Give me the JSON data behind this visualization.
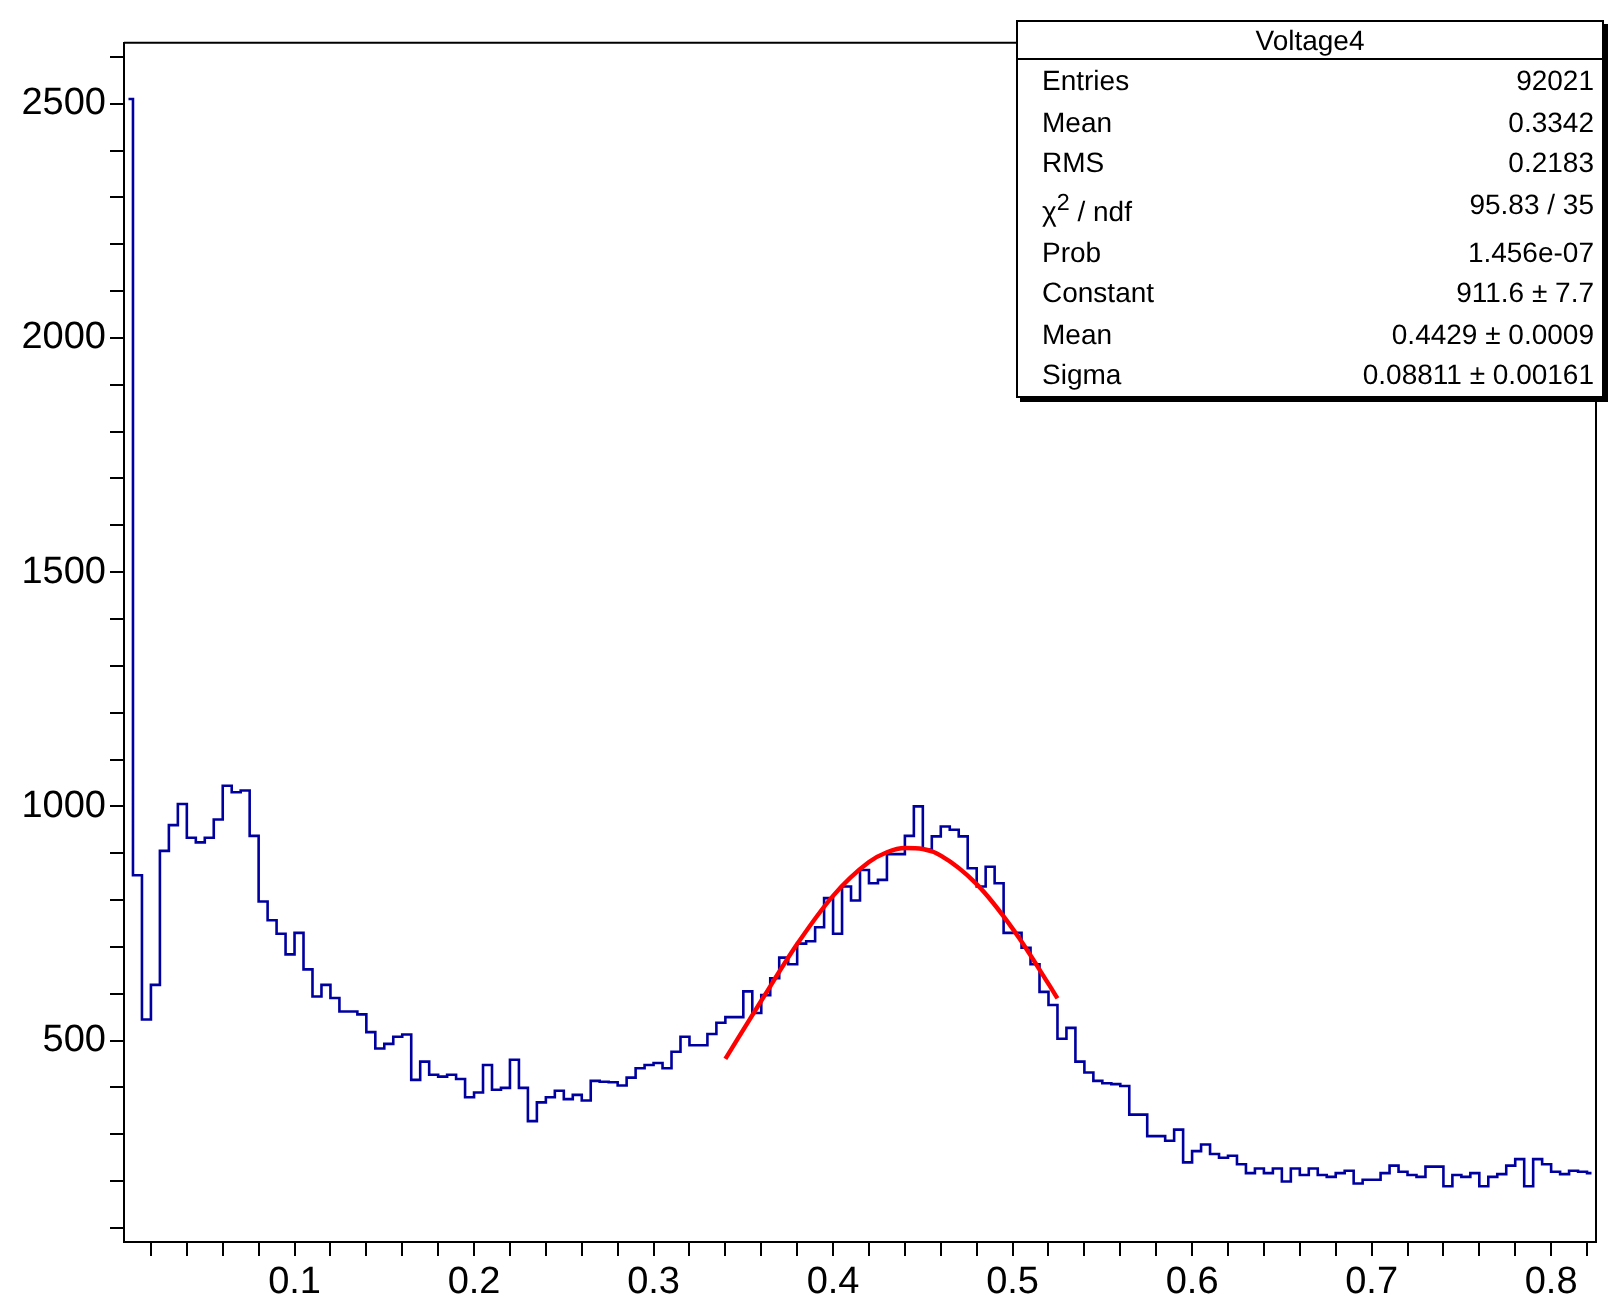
{
  "chart_data": {
    "type": "histogram",
    "bins": [
      0.005,
      0.01,
      0.015,
      0.02,
      0.025,
      0.03,
      0.035,
      0.04,
      0.045,
      0.05,
      0.055,
      0.06,
      0.065,
      0.07,
      0.075,
      0.08,
      0.085,
      0.09,
      0.095,
      0.1,
      0.105,
      0.11,
      0.115,
      0.12,
      0.125,
      0.13,
      0.135,
      0.14,
      0.145,
      0.15,
      0.155,
      0.16,
      0.165,
      0.17,
      0.175,
      0.18,
      0.185,
      0.19,
      0.195,
      0.2,
      0.205,
      0.21,
      0.215,
      0.22,
      0.225,
      0.23,
      0.235,
      0.24,
      0.245,
      0.25,
      0.255,
      0.26,
      0.265,
      0.27,
      0.275,
      0.28,
      0.285,
      0.29,
      0.295,
      0.3,
      0.305,
      0.31,
      0.315,
      0.32,
      0.325,
      0.33,
      0.335,
      0.34,
      0.345,
      0.35,
      0.355,
      0.36,
      0.365,
      0.37,
      0.375,
      0.38,
      0.385,
      0.39,
      0.395,
      0.4,
      0.405,
      0.41,
      0.415,
      0.42,
      0.425,
      0.43,
      0.435,
      0.44,
      0.445,
      0.45,
      0.455,
      0.46,
      0.465,
      0.47,
      0.475,
      0.48,
      0.485,
      0.49,
      0.495,
      0.5,
      0.505,
      0.51,
      0.515,
      0.52,
      0.525,
      0.53,
      0.535,
      0.54,
      0.545,
      0.55,
      0.555,
      0.56,
      0.565,
      0.57,
      0.575,
      0.58,
      0.585,
      0.59,
      0.595,
      0.6,
      0.605,
      0.61,
      0.615,
      0.62,
      0.625,
      0.63,
      0.635,
      0.64,
      0.645,
      0.65,
      0.655,
      0.66,
      0.665,
      0.67,
      0.675,
      0.68,
      0.685,
      0.69,
      0.695,
      0.7,
      0.705,
      0.71,
      0.715,
      0.72,
      0.725,
      0.73,
      0.735,
      0.74,
      0.745,
      0.75,
      0.755,
      0.76,
      0.765,
      0.77,
      0.775,
      0.78,
      0.785,
      0.79,
      0.795,
      0.8,
      0.805,
      0.81,
      0.815,
      0.82,
      0.825
    ],
    "series": [
      {
        "color": "#0000a0",
        "values": [
          2510,
          853,
          545,
          619,
          905,
          960,
          1005,
          933,
          923,
          933,
          972,
          1044,
          1030,
          1034,
          937,
          797,
          757,
          728,
          684,
          730,
          652,
          594,
          619,
          591,
          562,
          562,
          556,
          518,
          483,
          493,
          508,
          513,
          416,
          455,
          427,
          423,
          427,
          418,
          379,
          389,
          448,
          395,
          399,
          459,
          399,
          328,
          368,
          379,
          393,
          375,
          384,
          372,
          414,
          412,
          411,
          404,
          421,
          441,
          448,
          452,
          441,
          476,
          508,
          490,
          490,
          514,
          538,
          550,
          550,
          605,
          559,
          597,
          633,
          677,
          663,
          707,
          712,
          742,
          804,
          728,
          829,
          799,
          864,
          836,
          843,
          898,
          898,
          937,
          1000,
          908,
          936,
          957,
          950,
          936,
          868,
          829,
          871,
          836,
          730,
          730,
          698,
          663,
          604,
          576,
          504,
          527,
          455,
          432,
          414,
          409,
          407,
          403,
          342,
          342,
          296,
          296,
          286,
          310,
          240,
          264,
          278,
          258,
          250,
          254,
          236,
          217,
          227,
          217,
          227,
          199,
          227,
          213,
          227,
          213,
          209,
          217,
          222,
          195,
          203,
          203,
          217,
          233,
          220,
          213,
          209,
          231,
          231,
          189,
          213,
          209,
          217,
          189,
          209,
          215,
          233,
          247,
          189,
          247,
          236,
          220,
          215,
          222,
          220,
          217
        ]
      },
      {
        "type": "line",
        "color": "#ff0000",
        "x": [
          0.34,
          0.36,
          0.38,
          0.4,
          0.42,
          0.43,
          0.44,
          0.45,
          0.46,
          0.48,
          0.5,
          0.52,
          0.525
        ],
        "values": [
          461,
          585,
          706,
          809,
          881,
          902,
          911,
          909,
          895,
          834,
          739,
          621,
          590
        ]
      }
    ],
    "xlim": [
      0.005,
      0.825
    ],
    "xticks": [
      {
        "value": 0.02,
        "label": null
      },
      {
        "value": 0.04,
        "label": null
      },
      {
        "value": 0.06,
        "label": null
      },
      {
        "value": 0.08,
        "label": null
      },
      0.1,
      {
        "value": 0.12,
        "label": null
      },
      {
        "value": 0.14,
        "label": null
      },
      {
        "value": 0.16,
        "label": null
      },
      {
        "value": 0.18,
        "label": null
      },
      0.2,
      {
        "value": 0.22,
        "label": null
      },
      {
        "value": 0.24,
        "label": null
      },
      {
        "value": 0.26,
        "label": null
      },
      {
        "value": 0.28,
        "label": null
      },
      0.3,
      {
        "value": 0.32,
        "label": null
      },
      {
        "value": 0.34,
        "label": null
      },
      {
        "value": 0.36,
        "label": null
      },
      {
        "value": 0.38,
        "label": null
      },
      0.4,
      {
        "value": 0.42,
        "label": null
      },
      {
        "value": 0.44,
        "label": null
      },
      {
        "value": 0.46,
        "label": null
      },
      {
        "value": 0.48,
        "label": null
      },
      0.5,
      {
        "value": 0.52,
        "label": null
      },
      {
        "value": 0.54,
        "label": null
      },
      {
        "value": 0.56,
        "label": null
      },
      {
        "value": 0.58,
        "label": null
      },
      0.6,
      {
        "value": 0.62,
        "label": null
      },
      {
        "value": 0.64,
        "label": null
      },
      {
        "value": 0.66,
        "label": null
      },
      {
        "value": 0.68,
        "label": null
      },
      0.7,
      {
        "value": 0.72,
        "label": null
      },
      {
        "value": 0.74,
        "label": null
      },
      {
        "value": 0.76,
        "label": null
      },
      {
        "value": 0.78,
        "label": null
      },
      0.8,
      {
        "value": 0.82,
        "label": null
      }
    ],
    "ylim": [
      70,
      2630
    ],
    "yticks": [
      {
        "value": 100,
        "label": null
      },
      {
        "value": 200,
        "label": null
      },
      {
        "value": 300,
        "label": null
      },
      {
        "value": 400,
        "label": null
      },
      500,
      {
        "value": 600,
        "label": null
      },
      {
        "value": 700,
        "label": null
      },
      {
        "value": 800,
        "label": null
      },
      {
        "value": 900,
        "label": null
      },
      1000,
      {
        "value": 1100,
        "label": null
      },
      {
        "value": 1200,
        "label": null
      },
      {
        "value": 1300,
        "label": null
      },
      {
        "value": 1400,
        "label": null
      },
      1500,
      {
        "value": 1600,
        "label": null
      },
      {
        "value": 1700,
        "label": null
      },
      {
        "value": 1800,
        "label": null
      },
      {
        "value": 1900,
        "label": null
      },
      2000,
      {
        "value": 2100,
        "label": null
      },
      {
        "value": 2200,
        "label": null
      },
      {
        "value": 2300,
        "label": null
      },
      {
        "value": 2400,
        "label": null
      },
      2500,
      {
        "value": 2600,
        "label": null
      }
    ],
    "grid": false,
    "annotations": [
      "Voltage4",
      "Entries",
      "92021",
      "Mean",
      "0.3342",
      "RMS",
      "0.2183",
      "χ$^{2}$ / ndf",
      "95.83 / 35",
      "Prob",
      "1.456e-07",
      "Constant",
      "911.6 ± 7.7",
      "Mean",
      "0.4429 ± 0.0009",
      "Sigma",
      "0.08811 ± 0.00161"
    ]
  }
}
